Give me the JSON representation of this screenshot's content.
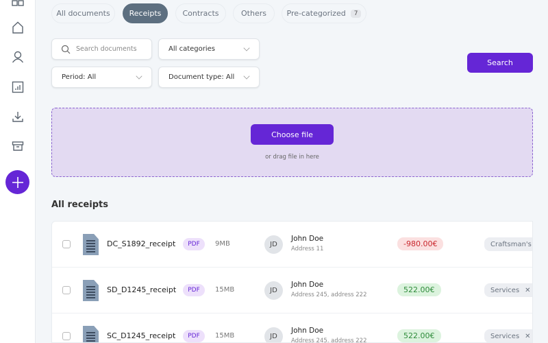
{
  "sidebar": {
    "items": [
      {
        "icon": "grid-icon"
      },
      {
        "icon": "home-icon"
      },
      {
        "icon": "user-icon"
      },
      {
        "icon": "chart-icon"
      },
      {
        "icon": "download-icon"
      },
      {
        "icon": "archive-icon"
      }
    ],
    "add_icon": "plus-icon"
  },
  "tabs": [
    {
      "label": "All documents"
    },
    {
      "label": "Receipts",
      "active": true
    },
    {
      "label": "Contracts"
    },
    {
      "label": "Others"
    },
    {
      "label": "Pre-categorized",
      "count": "7"
    }
  ],
  "filters": {
    "search_placeholder": "Search documents",
    "category": "All categories",
    "period": "Period: All",
    "doc_type": "Document type: All",
    "search_button": "Search"
  },
  "upload": {
    "button": "Choose file",
    "hint": "or drag file in here"
  },
  "section_title": "All receipts",
  "colors": {
    "accent": "#6526d6",
    "negative": "#c9262c",
    "positive": "#2e8b3a"
  },
  "rows": [
    {
      "name": "DC_S1892_receipt",
      "type": "PDF",
      "size": "9MB",
      "initials": "JD",
      "person": "John Doe",
      "address": "Address 11",
      "amount": "-980.00€",
      "amount_sign": "negative",
      "category": "Craftsman's B"
    },
    {
      "name": "SD_D1245_receipt",
      "type": "PDF",
      "size": "15MB",
      "initials": "JD",
      "person": "John Doe",
      "address": "Address 245, address 222",
      "amount": "522.00€",
      "amount_sign": "positive",
      "category": "Services",
      "remove": "✕"
    },
    {
      "name": "SC_D1245_receipt",
      "type": "PDF",
      "size": "15MB",
      "initials": "JD",
      "person": "John Doe",
      "address": "Address 245, address 222",
      "amount": "522.00€",
      "amount_sign": "positive",
      "category": "Services",
      "remove": "✕"
    }
  ]
}
